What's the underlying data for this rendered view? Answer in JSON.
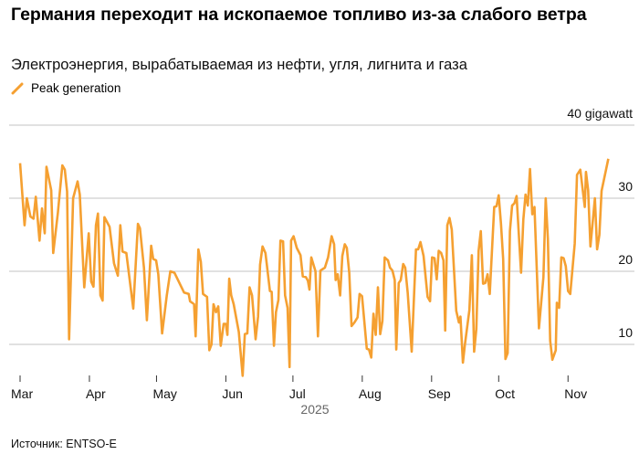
{
  "title": "Германия переходит на ископаемое топливо из-за слабого ветра",
  "subtitle": "Электроэнергия, вырабатываемая из нефти, угля, лигнита и газа",
  "source": "Источник: ENTSO-E",
  "chart_data": {
    "type": "line",
    "title": "Германия переходит на ископаемое топливо из-за слабого ветра",
    "subtitle": "Электроэнергия, вырабатываемая из нефти, угля, лигнита и газа",
    "xlabel": "2025",
    "ylabel": "gigawatt",
    "x_unit": "days since Mar 1, 2025",
    "ylim": [
      0,
      40
    ],
    "xlim": [
      0,
      263
    ],
    "grid": true,
    "legend_position": "top-left",
    "y_ticks": [
      {
        "value": 40,
        "label": "40 gigawatt"
      },
      {
        "value": 30,
        "label": "30"
      },
      {
        "value": 20,
        "label": "20"
      },
      {
        "value": 10,
        "label": "10"
      }
    ],
    "x_ticks": [
      {
        "value": 0,
        "label": "Mar"
      },
      {
        "value": 31,
        "label": "Apr"
      },
      {
        "value": 61,
        "label": "May"
      },
      {
        "value": 92,
        "label": "Jun"
      },
      {
        "value": 122,
        "label": "Jul"
      },
      {
        "value": 153,
        "label": "Aug"
      },
      {
        "value": 184,
        "label": "Sep"
      },
      {
        "value": 214,
        "label": "Oct"
      },
      {
        "value": 245,
        "label": "Nov"
      }
    ],
    "series": [
      {
        "name": "Peak generation",
        "color": "#f5a031",
        "x": [
          0,
          2,
          3,
          4.6,
          6,
          7,
          8.7,
          9.8,
          11,
          11.8,
          13.9,
          14.8,
          16.9,
          18.9,
          20,
          21,
          21.9,
          23.7,
          25.7,
          26.7,
          28.7,
          30.7,
          31.8,
          32.8,
          33.9,
          34.8,
          35.9,
          36.9,
          37.7,
          40,
          42,
          43.7,
          44.8,
          45.8,
          47.5,
          50.6,
          52.7,
          53.6,
          55.4,
          56.7,
          58.6,
          59.5,
          60.8,
          61.8,
          63.5,
          65.6,
          67.2,
          69,
          73.3,
          75.4,
          76,
          77.8,
          78.5,
          79.7,
          80.8,
          81.8,
          83.6,
          84.6,
          85.6,
          86.5,
          87.6,
          88.6,
          89.7,
          91,
          92,
          92.7,
          93.5,
          94.4,
          95.5,
          97.8,
          99.5,
          100.5,
          101.6,
          102.6,
          103.7,
          105.3,
          106.4,
          107.3,
          108.4,
          109.7,
          111.7,
          112.5,
          113.5,
          114.4,
          115.5,
          116.4,
          117.6,
          118.5,
          119.6,
          120.5,
          121.2,
          122.3,
          123.7,
          125.4,
          126.4,
          127.8,
          128.7,
          129.4,
          130.2,
          132.1,
          133.2,
          134.3,
          136.3,
          137.7,
          139.3,
          140.4,
          141.1,
          142,
          143.1,
          144.1,
          145.2,
          146.1,
          147.2,
          148.2,
          149.5,
          150.9,
          151.8,
          152.9,
          155,
          156,
          157,
          158,
          159,
          160,
          161,
          162,
          163,
          164.5,
          165.4,
          166.5,
          167.5,
          168.2,
          169.3,
          170.2,
          171.3,
          172.2,
          173.3,
          175.1,
          177,
          178,
          179,
          180.4,
          182.2,
          183.3,
          184.2,
          185.3,
          186.3,
          187.2,
          188.3,
          189.3,
          190.1,
          191,
          192,
          193,
          195,
          196.2,
          196.9,
          198,
          198.9,
          200.9,
          202,
          203,
          204,
          205,
          206,
          207,
          208,
          209,
          210,
          212,
          213,
          214,
          215,
          216,
          217,
          218,
          219,
          220,
          221,
          222,
          224,
          225,
          226,
          227,
          228,
          229,
          230,
          232,
          234,
          235,
          236,
          237,
          238,
          239.5,
          240,
          241,
          242,
          243,
          244,
          245,
          246,
          248,
          249,
          250.5,
          252.5,
          253,
          254,
          255,
          257,
          258,
          259,
          260,
          263
        ],
        "values": [
          34.8,
          26.3,
          30.0,
          27.5,
          27.2,
          30.2,
          24.2,
          28.6,
          25.2,
          34.3,
          31.1,
          22.5,
          28.0,
          34.5,
          33.9,
          30.9,
          10.7,
          30.0,
          32.3,
          30.5,
          17.8,
          25.2,
          18.6,
          17.9,
          26.3,
          27.9,
          16.7,
          16.0,
          27.4,
          26.1,
          21.1,
          19.4,
          26.3,
          22.7,
          22.5,
          14.9,
          26.5,
          25.9,
          20.5,
          13.3,
          23.5,
          21.7,
          21.5,
          19.6,
          11.5,
          16.7,
          20.0,
          19.8,
          17.1,
          16.9,
          15.9,
          15.5,
          11.1,
          23.0,
          21.3,
          16.9,
          16.5,
          9.2,
          10.0,
          15.5,
          14.4,
          15.2,
          9.8,
          12.8,
          12.8,
          11.3,
          19.0,
          16.7,
          15.5,
          11.7,
          5.7,
          11.4,
          11.5,
          17.8,
          16.7,
          10.7,
          13.8,
          20.9,
          23.4,
          22.5,
          17.3,
          17.2,
          9.8,
          14.4,
          16.1,
          24.2,
          24.1,
          16.7,
          15.0,
          6.9,
          24.2,
          24.8,
          23.2,
          22.2,
          19.3,
          19.2,
          18.7,
          17.5,
          21.9,
          20.0,
          11.1,
          20.1,
          20.5,
          21.9,
          24.8,
          23.7,
          18.8,
          19.6,
          16.7,
          22.1,
          23.7,
          23.2,
          19.8,
          12.5,
          13.0,
          13.7,
          16.9,
          16.6,
          9.4,
          9.3,
          8.2,
          14.2,
          11.3,
          17.8,
          11.4,
          13.2,
          21.9,
          21.5,
          20.5,
          20.1,
          18.8,
          9.3,
          18.4,
          18.8,
          21.0,
          20.5,
          17.1,
          9.0,
          23.0,
          23.0,
          24.0,
          22.1,
          16.5,
          15.9,
          21.9,
          21.8,
          18.9,
          22.8,
          22.5,
          21.5,
          11.9,
          26.3,
          27.3,
          25.7,
          14.6,
          13.0,
          13.8,
          7.5,
          10.0,
          14.7,
          22.2,
          9.0,
          12.1,
          22.8,
          25.5,
          18.3,
          18.4,
          19.6,
          16.9,
          28.8,
          28.9,
          30.4,
          26.5,
          21.7,
          8.0,
          8.8,
          25.5,
          29.0,
          29.3,
          30.3,
          19.8,
          27.1,
          30.5,
          29.0,
          34.0,
          27.8,
          28.8,
          12.2,
          19.2,
          30.0,
          24.4,
          10.5,
          7.9,
          9.2,
          15.7,
          15.0,
          21.9,
          21.8,
          20.7,
          17.3,
          16.9,
          23.8,
          33.2,
          33.9,
          28.8,
          33.6,
          31.1,
          23.4,
          30.0,
          23.0,
          25.0,
          31.0,
          35.4
        ]
      }
    ]
  }
}
